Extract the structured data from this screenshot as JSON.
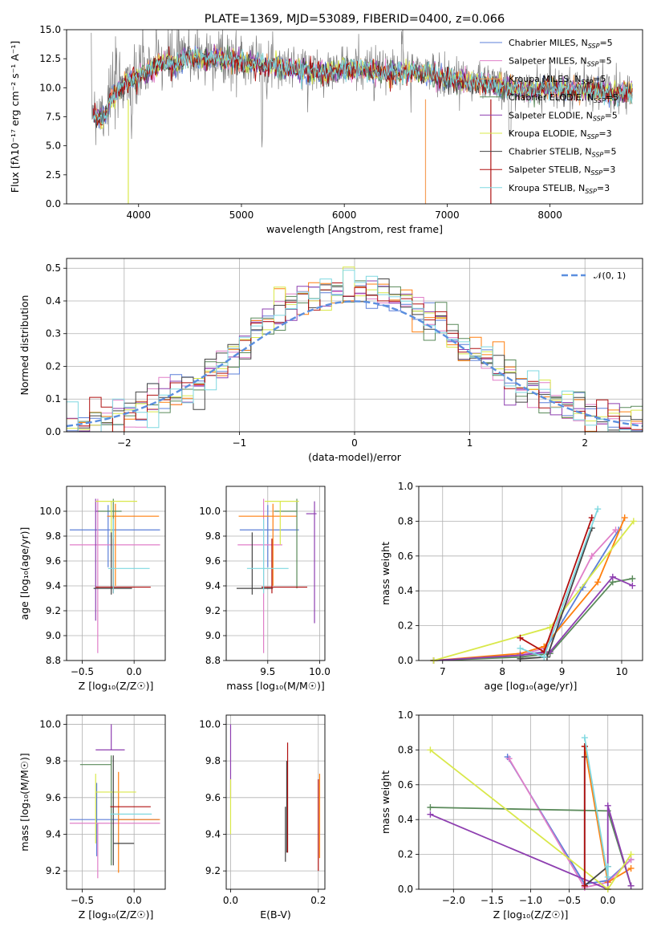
{
  "colors": [
    "#5b7fd8",
    "#e07fc8",
    "#f5a05a",
    "#5a8a5a",
    "#8e3fb0",
    "#d9e84a",
    "#444444",
    "#b01010",
    "#7fd8e0",
    "#ff7f0e"
  ],
  "chart_data": [
    {
      "id": "spectrum",
      "type": "line",
      "title": "PLATE=1369, MJD=53089, FIBERID=0400, z=0.066",
      "xlabel": "wavelength [Angstrom, rest frame]",
      "ylabel": "Flux [fλ10⁻¹⁷ erg cm⁻² s⁻¹ A⁻¹]",
      "xlim": [
        3300,
        8900
      ],
      "ylim": [
        0,
        15
      ],
      "xticks": [
        "4000",
        "5000",
        "6000",
        "7000",
        "8000"
      ],
      "yticks": [
        "0.0",
        "2.5",
        "5.0",
        "7.5",
        "10.0",
        "12.5",
        "15.0"
      ],
      "legend_position": "top-right",
      "series": [
        {
          "name": "Chabrier MILES, N_SSP=5",
          "color": "#5b7fd8"
        },
        {
          "name": "Salpeter MILES, N_SSP=5",
          "color": "#e07fc8"
        },
        {
          "name": "Kroupa MILES, N_SSP=5",
          "color": "#f5a05a"
        },
        {
          "name": "Chabrier ELODIE, N_SSP=5",
          "color": "#5a8a5a"
        },
        {
          "name": "Salpeter ELODIE, N_SSP=5",
          "color": "#8e3fb0"
        },
        {
          "name": "Kroupa ELODIE, N_SSP=3",
          "color": "#d9e84a"
        },
        {
          "name": "Chabrier STELIB, N_SSP=5",
          "color": "#444444"
        },
        {
          "name": "Salpeter STELIB, N_SSP=3",
          "color": "#b01010"
        },
        {
          "name": "Kroupa STELIB, N_SSP=3",
          "color": "#7fd8e0"
        }
      ],
      "data_x": [
        3550,
        3650,
        3750,
        3850,
        3950,
        4050,
        4150,
        4250,
        4350,
        4450,
        4550,
        4650,
        4750,
        4850,
        5000,
        5200,
        5400,
        5600,
        5800,
        6000,
        6200,
        6400,
        6600,
        6800,
        7000,
        7200,
        7400,
        7600,
        7800,
        8000,
        8200,
        8400,
        8600
      ],
      "data_y": [
        8.5,
        8.0,
        9.5,
        10.5,
        11.0,
        11.5,
        12.0,
        12.5,
        12.0,
        12.8,
        12.8,
        12.5,
        13.0,
        12.5,
        12.5,
        12.2,
        12.0,
        11.8,
        11.5,
        11.8,
        11.8,
        11.5,
        11.5,
        11.5,
        11.0,
        10.8,
        10.5,
        10.2,
        10.0,
        10.2,
        10.0,
        10.0,
        9.8
      ]
    },
    {
      "id": "residuals",
      "type": "step",
      "xlabel": "(data-model)/error",
      "ylabel": "Normed distribution",
      "xlim": [
        -2.5,
        2.5
      ],
      "ylim": [
        0,
        0.53
      ],
      "xticks": [
        "−2",
        "−1",
        "0",
        "1",
        "2"
      ],
      "yticks": [
        "0.0",
        "0.1",
        "0.2",
        "0.3",
        "0.4",
        "0.5"
      ],
      "legend": "𝒩(0, 1)",
      "legend_position": "top-right",
      "bin_width": 0.1,
      "reference": "normal(0,1)"
    },
    {
      "id": "age-vs-Z",
      "type": "errorbar",
      "xlabel": "Z [log₁₀(Z/Z☉)]",
      "ylabel": "age  [log₁₀(age/yr)]",
      "xlim": [
        -0.65,
        0.3
      ],
      "ylim": [
        8.8,
        10.2
      ],
      "xticks": [
        "−0.5",
        "0.0"
      ],
      "yticks": [
        "8.8",
        "9.0",
        "9.2",
        "9.4",
        "9.6",
        "9.8",
        "10.0"
      ],
      "points": [
        {
          "x": -0.25,
          "y": 9.85,
          "xerr": [
            0.37,
            0.5
          ],
          "yerr": [
            0.3,
            0.2
          ],
          "color": "#5b7fd8"
        },
        {
          "x": -0.35,
          "y": 9.73,
          "xerr": [
            0.27,
            0.6
          ],
          "yerr": [
            0.87,
            0.37
          ],
          "color": "#e07fc8"
        },
        {
          "x": -0.18,
          "y": 9.96,
          "xerr": [
            0.08,
            0.42
          ],
          "yerr": [
            0.56,
            0.1
          ],
          "color": "#ff7f0e"
        },
        {
          "x": -0.2,
          "y": 10.0,
          "xerr": [
            0.15,
            0.08
          ],
          "yerr": [
            0.62,
            0.1
          ],
          "color": "#5a8a5a"
        },
        {
          "x": -0.37,
          "y": 10.0,
          "xerr": [
            0.0,
            0.02
          ],
          "yerr": [
            0.88,
            0.1
          ],
          "color": "#8e3fb0"
        },
        {
          "x": -0.22,
          "y": 10.08,
          "xerr": [
            0.15,
            0.25
          ],
          "yerr": [
            0.35,
            0.0
          ],
          "color": "#d9e84a"
        },
        {
          "x": -0.22,
          "y": 9.38,
          "xerr": [
            0.17,
            0.2
          ],
          "yerr": [
            0.05,
            0.45
          ],
          "color": "#444444"
        },
        {
          "x": -0.2,
          "y": 9.39,
          "xerr": [
            0.17,
            0.36
          ],
          "yerr": [
            0.05,
            0.39
          ],
          "color": "#b01010"
        },
        {
          "x": -0.2,
          "y": 9.54,
          "xerr": [
            0.05,
            0.35
          ],
          "yerr": [
            0.2,
            0.4
          ],
          "color": "#7fd8e0"
        }
      ]
    },
    {
      "id": "age-vs-mass",
      "type": "errorbar",
      "xlabel": "mass [log₁₀(M/M☉)]",
      "xlim": [
        9.1,
        10.05
      ],
      "ylim": [
        8.8,
        10.2
      ],
      "xticks": [
        "9.5",
        "10.0"
      ],
      "yticks": [
        "8.8",
        "9.0",
        "9.2",
        "9.4",
        "9.6",
        "9.8",
        "10.0"
      ],
      "points": [
        {
          "x": 9.5,
          "y": 9.85,
          "xerr": [
            0.27,
            0.3
          ],
          "yerr": [
            0.3,
            0.2
          ],
          "color": "#5b7fd8"
        },
        {
          "x": 9.46,
          "y": 9.73,
          "xerr": [
            0.25,
            0.18
          ],
          "yerr": [
            0.87,
            0.37
          ],
          "color": "#e07fc8"
        },
        {
          "x": 9.55,
          "y": 9.96,
          "xerr": [
            0.33,
            0.23
          ],
          "yerr": [
            0.56,
            0.1
          ],
          "color": "#ff7f0e"
        },
        {
          "x": 9.78,
          "y": 10.0,
          "xerr": [
            0.22,
            0.0
          ],
          "yerr": [
            0.62,
            0.1
          ],
          "color": "#5a8a5a"
        },
        {
          "x": 9.95,
          "y": 9.98,
          "xerr": [
            0.08,
            0.02
          ],
          "yerr": [
            0.88,
            0.1
          ],
          "color": "#8e3fb0"
        },
        {
          "x": 9.62,
          "y": 10.08,
          "xerr": [
            0.15,
            0.18
          ],
          "yerr": [
            0.35,
            0.0
          ],
          "color": "#d9e84a"
        },
        {
          "x": 9.35,
          "y": 9.38,
          "xerr": [
            0.15,
            0.2
          ],
          "yerr": [
            0.05,
            0.45
          ],
          "color": "#444444"
        },
        {
          "x": 9.54,
          "y": 9.39,
          "xerr": [
            0.1,
            0.34
          ],
          "yerr": [
            0.05,
            0.39
          ],
          "color": "#b01010"
        },
        {
          "x": 9.46,
          "y": 9.54,
          "xerr": [
            0.16,
            0.24
          ],
          "yerr": [
            0.2,
            0.4
          ],
          "color": "#7fd8e0"
        }
      ]
    },
    {
      "id": "weight-vs-age",
      "type": "line",
      "xlabel": "age  [log₁₀(age/yr)]",
      "ylabel": "mass weight",
      "xlim": [
        6.6,
        10.35
      ],
      "ylim": [
        0,
        1.0
      ],
      "xticks": [
        "7",
        "8",
        "9",
        "10"
      ],
      "yticks": [
        "0.0",
        "0.2",
        "0.4",
        "0.6",
        "0.8",
        "1.0"
      ],
      "series": [
        {
          "color": "#5b7fd8",
          "x": [
            6.85,
            8.3,
            8.7,
            9.35,
            9.95
          ],
          "y": [
            0.0,
            0.03,
            0.05,
            0.42,
            0.75
          ]
        },
        {
          "color": "#e07fc8",
          "x": [
            6.85,
            8.3,
            8.7,
            9.5,
            9.9
          ],
          "y": [
            0.0,
            0.03,
            0.07,
            0.6,
            0.75
          ]
        },
        {
          "color": "#ff7f0e",
          "x": [
            6.85,
            8.3,
            8.7,
            9.6,
            10.05
          ],
          "y": [
            0.0,
            0.04,
            0.08,
            0.45,
            0.82
          ]
        },
        {
          "color": "#5a8a5a",
          "x": [
            6.85,
            8.3,
            8.8,
            9.85,
            10.18
          ],
          "y": [
            0.0,
            0.02,
            0.04,
            0.45,
            0.47
          ]
        },
        {
          "color": "#8e3fb0",
          "x": [
            6.85,
            8.3,
            8.8,
            9.85,
            10.18
          ],
          "y": [
            0.0,
            0.03,
            0.05,
            0.48,
            0.43
          ]
        },
        {
          "color": "#d9e84a",
          "x": [
            6.85,
            8.8,
            10.2
          ],
          "y": [
            0.0,
            0.19,
            0.8
          ]
        },
        {
          "color": "#444444",
          "x": [
            8.3,
            8.75,
            9.5
          ],
          "y": [
            0.01,
            0.02,
            0.76
          ]
        },
        {
          "color": "#b01010",
          "x": [
            8.3,
            8.7,
            9.5
          ],
          "y": [
            0.13,
            0.05,
            0.82
          ]
        },
        {
          "color": "#7fd8e0",
          "x": [
            8.3,
            8.7,
            9.6
          ],
          "y": [
            0.07,
            0.02,
            0.87
          ]
        }
      ]
    },
    {
      "id": "mass-vs-Z",
      "type": "errorbar",
      "xlabel": "Z [log₁₀(Z/Z☉)]",
      "ylabel": "mass [log₁₀(M/M☉)]",
      "xlim": [
        -0.65,
        0.3
      ],
      "ylim": [
        9.1,
        10.05
      ],
      "xticks": [
        "−0.5",
        "0.0"
      ],
      "yticks": [
        "9.2",
        "9.4",
        "9.6",
        "9.8",
        "10.0"
      ],
      "points": [
        {
          "x": -0.36,
          "y": 9.48,
          "xerr": [
            0.26,
            0.6
          ],
          "yerr": [
            0.2,
            0.2
          ],
          "color": "#5b7fd8"
        },
        {
          "x": -0.35,
          "y": 9.46,
          "xerr": [
            0.27,
            0.6
          ],
          "yerr": [
            0.3,
            0.0
          ],
          "color": "#e07fc8"
        },
        {
          "x": -0.15,
          "y": 9.48,
          "xerr": [
            0.0,
            0.4
          ],
          "yerr": [
            0.29,
            0.26
          ],
          "color": "#ff7f0e"
        },
        {
          "x": -0.22,
          "y": 9.78,
          "xerr": [
            0.3,
            0.0
          ],
          "yerr": [
            0.55,
            0.05
          ],
          "color": "#5a8a5a"
        },
        {
          "x": -0.22,
          "y": 9.86,
          "xerr": [
            0.15,
            0.13
          ],
          "yerr": [
            0.0,
            0.14
          ],
          "color": "#8e3fb0"
        },
        {
          "x": -0.37,
          "y": 9.63,
          "xerr": [
            0.0,
            0.39
          ],
          "yerr": [
            0.28,
            0.1
          ],
          "color": "#d9e84a"
        },
        {
          "x": -0.2,
          "y": 9.35,
          "xerr": [
            0.0,
            0.2
          ],
          "yerr": [
            0.12,
            0.48
          ],
          "color": "#444444"
        },
        {
          "x": -0.23,
          "y": 9.55,
          "xerr": [
            0.0,
            0.39
          ],
          "yerr": [
            0.0,
            0.0
          ],
          "color": "#b01010"
        },
        {
          "x": -0.23,
          "y": 9.51,
          "xerr": [
            0.0,
            0.4
          ],
          "yerr": [
            0.0,
            0.0
          ],
          "color": "#7fd8e0"
        }
      ]
    },
    {
      "id": "mass-vs-EBV",
      "type": "errorbar",
      "xlabel": "E(B-V)",
      "xlim": [
        -0.01,
        0.215
      ],
      "ylim": [
        9.1,
        10.05
      ],
      "xticks": [
        "0.0",
        "0.2"
      ],
      "yticks": [
        "9.2",
        "9.4",
        "9.6",
        "9.8",
        "10.0"
      ],
      "points": [
        {
          "x": 0.0,
          "y": 9.8,
          "xerr": [
            0,
            0
          ],
          "yerr": [
            0.2,
            0.2
          ],
          "color": "#8e3fb0"
        },
        {
          "x": 0.0,
          "y": 9.55,
          "xerr": [
            0,
            0
          ],
          "yerr": [
            0.15,
            0.15
          ],
          "color": "#d9e84a"
        },
        {
          "x": 0.125,
          "y": 9.4,
          "xerr": [
            0,
            0
          ],
          "yerr": [
            0.15,
            0.15
          ],
          "color": "#444444"
        },
        {
          "x": 0.128,
          "y": 9.55,
          "xerr": [
            0,
            0
          ],
          "yerr": [
            0.25,
            0.25
          ],
          "color": "#444444"
        },
        {
          "x": 0.13,
          "y": 9.6,
          "xerr": [
            0,
            0
          ],
          "yerr": [
            0.3,
            0.3
          ],
          "color": "#b01010"
        },
        {
          "x": 0.2,
          "y": 9.45,
          "xerr": [
            0,
            0
          ],
          "yerr": [
            0.25,
            0.25
          ],
          "color": "#b01010"
        },
        {
          "x": 0.203,
          "y": 9.5,
          "xerr": [
            0,
            0
          ],
          "yerr": [
            0.23,
            0.23
          ],
          "color": "#ff7f0e"
        }
      ]
    },
    {
      "id": "weight-vs-Z",
      "type": "line",
      "xlabel": "Z [log₁₀(Z/Z☉)]",
      "ylabel": "mass weight",
      "xlim": [
        -2.45,
        0.45
      ],
      "ylim": [
        0,
        1.0
      ],
      "xticks": [
        "−2.0",
        "−1.5",
        "−1.0",
        "−0.5",
        "0.0"
      ],
      "yticks": [
        "0.0",
        "0.2",
        "0.4",
        "0.6",
        "0.8",
        "1.0"
      ],
      "series": [
        {
          "color": "#5b7fd8",
          "x": [
            -1.3,
            -0.3,
            0.0,
            0.3
          ],
          "y": [
            0.76,
            0.03,
            0.05,
            0.17
          ]
        },
        {
          "color": "#e07fc8",
          "x": [
            -1.28,
            -0.3,
            0.0,
            0.3
          ],
          "y": [
            0.75,
            0.01,
            0.04,
            0.17
          ]
        },
        {
          "color": "#ff7f0e",
          "x": [
            -0.3,
            0.0,
            0.3
          ],
          "y": [
            0.82,
            0.04,
            0.12
          ]
        },
        {
          "color": "#5a8a5a",
          "x": [
            -2.3,
            0.0,
            0.3
          ],
          "y": [
            0.47,
            0.45,
            0.02
          ]
        },
        {
          "color": "#8e3fb0",
          "x": [
            -2.3,
            0.0,
            0.0,
            0.3
          ],
          "y": [
            0.43,
            0.0,
            0.48,
            0.02
          ]
        },
        {
          "color": "#d9e84a",
          "x": [
            -2.3,
            0.0,
            0.3
          ],
          "y": [
            0.8,
            0.0,
            0.2
          ]
        },
        {
          "color": "#444444",
          "x": [
            -0.3,
            -0.3,
            0.0
          ],
          "y": [
            0.76,
            0.02,
            0.13
          ]
        },
        {
          "color": "#b01010",
          "x": [
            -0.3,
            -0.3
          ],
          "y": [
            0.82,
            0.02
          ]
        },
        {
          "color": "#7fd8e0",
          "x": [
            -0.3,
            0.0,
            0.0
          ],
          "y": [
            0.87,
            0.07,
            0.13
          ]
        }
      ]
    }
  ]
}
